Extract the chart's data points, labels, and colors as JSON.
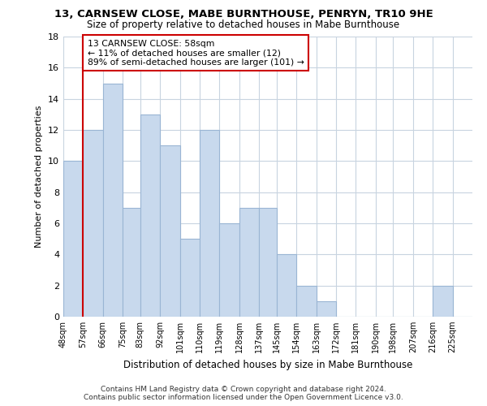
{
  "title": "13, CARNSEW CLOSE, MABE BURNTHOUSE, PENRYN, TR10 9HE",
  "subtitle": "Size of property relative to detached houses in Mabe Burnthouse",
  "xlabel": "Distribution of detached houses by size in Mabe Burnthouse",
  "ylabel": "Number of detached properties",
  "bin_edges": [
    48,
    57,
    66,
    75,
    83,
    92,
    101,
    110,
    119,
    128,
    137,
    145,
    154,
    163,
    172,
    181,
    190,
    198,
    207,
    216,
    225,
    234
  ],
  "bin_labels": [
    "48sqm",
    "57sqm",
    "66sqm",
    "75sqm",
    "83sqm",
    "92sqm",
    "101sqm",
    "110sqm",
    "119sqm",
    "128sqm",
    "137sqm",
    "145sqm",
    "154sqm",
    "163sqm",
    "172sqm",
    "181sqm",
    "190sqm",
    "198sqm",
    "207sqm",
    "216sqm",
    "225sqm"
  ],
  "counts": [
    10,
    12,
    15,
    7,
    13,
    11,
    5,
    12,
    6,
    7,
    7,
    4,
    2,
    1,
    0,
    0,
    0,
    0,
    0,
    2,
    0
  ],
  "bar_color": "#c8d9ed",
  "bar_edge_color": "#9ab5d4",
  "property_line_x": 57,
  "property_line_color": "#cc0000",
  "annotation_text": "13 CARNSEW CLOSE: 58sqm\n← 11% of detached houses are smaller (12)\n89% of semi-detached houses are larger (101) →",
  "annotation_box_color": "#ffffff",
  "annotation_box_edge_color": "#cc0000",
  "ylim": [
    0,
    18
  ],
  "yticks": [
    0,
    2,
    4,
    6,
    8,
    10,
    12,
    14,
    16,
    18
  ],
  "footer_text": "Contains HM Land Registry data © Crown copyright and database right 2024.\nContains public sector information licensed under the Open Government Licence v3.0.",
  "background_color": "#ffffff",
  "grid_color": "#c8d4e0"
}
